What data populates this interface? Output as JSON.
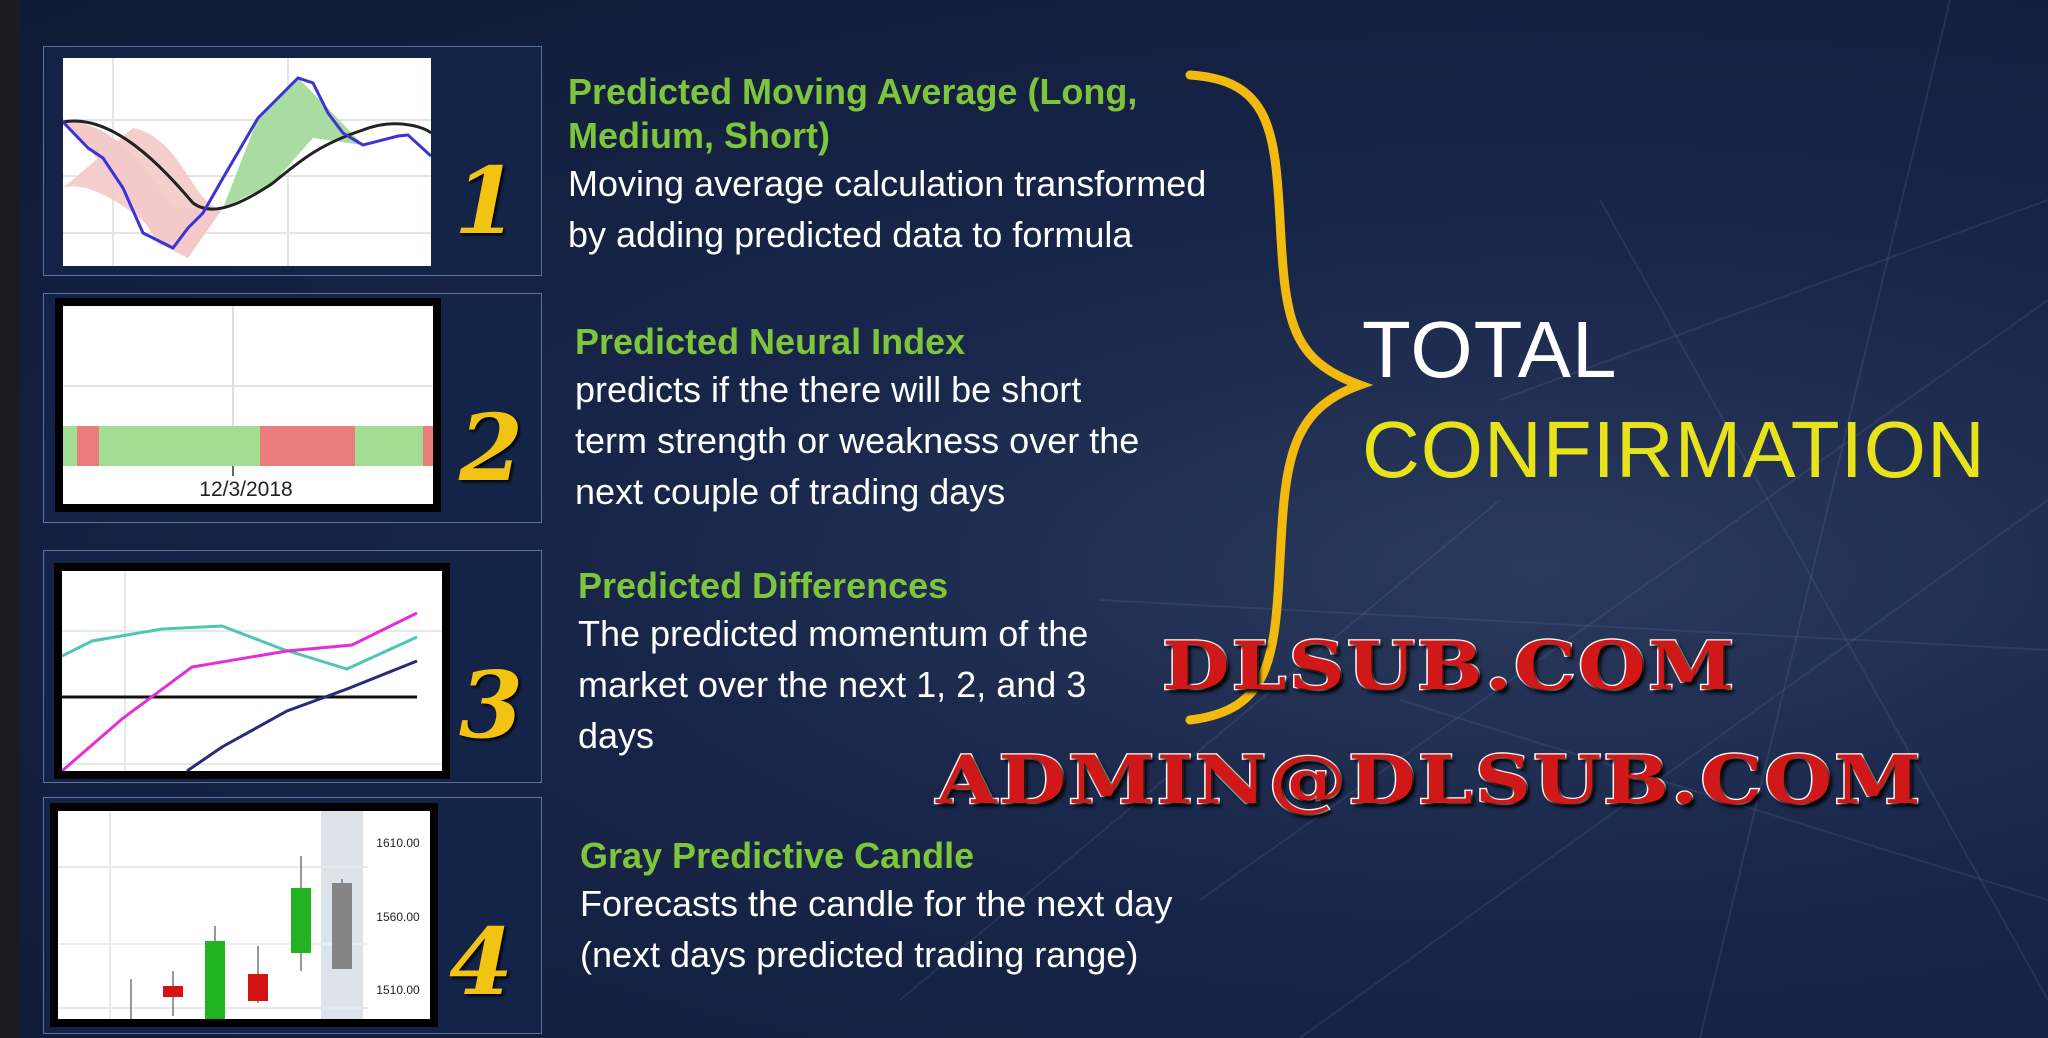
{
  "items": [
    {
      "number": "1",
      "title": "Predicted Moving Average (Long, Medium, Short)",
      "body_lines": [
        "Moving average calculation transformed",
        "by adding predicted data to formula"
      ]
    },
    {
      "number": "2",
      "title": "Predicted Neural Index",
      "body_lines": [
        "predicts if the there will be short",
        "term strength or weakness over the",
        "next couple of trading days"
      ],
      "chart_date_label": "12/3/2018"
    },
    {
      "number": "3",
      "title": "Predicted Differences",
      "body_lines": [
        "The predicted momentum of the",
        "market over the next 1, 2, and 3",
        "days"
      ]
    },
    {
      "number": "4",
      "title": "Gray Predictive Candle",
      "body_lines": [
        "Forecasts the candle for the next day",
        "(next days predicted trading range)"
      ],
      "price_labels": [
        "1610.00",
        "1560.00",
        "1510.00"
      ]
    }
  ],
  "headline": {
    "line1": "TOTAL",
    "line2": "CONFIRMATION"
  },
  "watermark": {
    "line1": "DLSUB.COM",
    "line2": "ADMIN@DLSUB.COM"
  },
  "colors": {
    "title_green": "#7fc53b",
    "number_gold": "#f2c313",
    "brace_gold": "#f2b90f",
    "confirmation_yellow": "#e8e21a",
    "background": "#18264a",
    "watermark_red": "#d01818"
  }
}
